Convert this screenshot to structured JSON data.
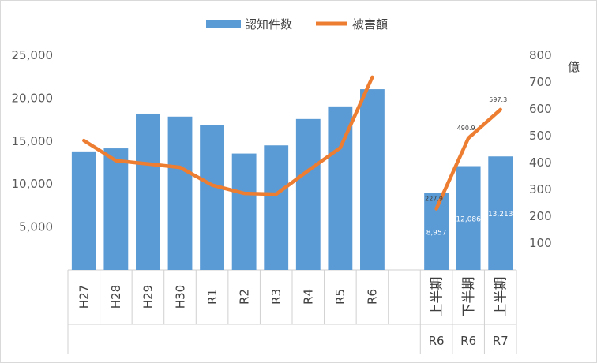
{
  "chart_data": {
    "type": "bar+line",
    "legend": {
      "position": "top",
      "entries": [
        "認知件数",
        "被害額"
      ]
    },
    "left_axis": {
      "min": 0,
      "max": 25000,
      "ticks": [
        "5,000",
        "10,000",
        "15,000",
        "20,000",
        "25,000"
      ],
      "tick_values": [
        5000,
        10000,
        15000,
        20000,
        25000
      ]
    },
    "right_axis": {
      "label": "億",
      "min": 0,
      "max": 800,
      "ticks": [
        "100",
        "200",
        "300",
        "400",
        "500",
        "600",
        "700",
        "800"
      ],
      "tick_values": [
        100,
        200,
        300,
        400,
        500,
        600,
        700,
        800
      ]
    },
    "categories": [
      "H27",
      "H28",
      "H29",
      "H30",
      "R1",
      "R2",
      "R3",
      "R4",
      "R5",
      "R6",
      "",
      "上半期",
      "下半期",
      "上半期"
    ],
    "group_labels": [
      "",
      "",
      "",
      "",
      "",
      "",
      "",
      "",
      "",
      "",
      "",
      "R6",
      "R6",
      "R7"
    ],
    "series": [
      {
        "name": "認知件数",
        "type": "bar",
        "color": "#5B9BD5",
        "axis": "left",
        "values": [
          13800,
          14150,
          18200,
          17850,
          16850,
          13550,
          14500,
          17570,
          19040,
          21040,
          null,
          8957,
          12086,
          13213
        ],
        "data_labels": [
          "",
          "",
          "",
          "",
          "",
          "",
          "",
          "",
          "",
          "",
          "",
          "8,957",
          "12,086",
          "13,213"
        ]
      },
      {
        "name": "被害額",
        "type": "line",
        "color": "#ED7D31",
        "axis": "right",
        "values": [
          482,
          407,
          395,
          382,
          316,
          285,
          282,
          370,
          455,
          718,
          null,
          227.9,
          490.9,
          597.3
        ],
        "data_labels": [
          "",
          "",
          "",
          "",
          "",
          "",
          "",
          "",
          "",
          "",
          "",
          "227.9",
          "490.9",
          "597.3"
        ]
      }
    ],
    "grid": false
  }
}
